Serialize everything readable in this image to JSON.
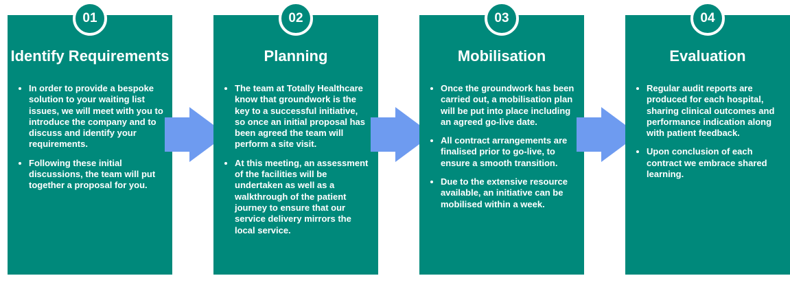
{
  "steps": [
    {
      "number": "01",
      "title": "Identify Requirements",
      "bullets": [
        "In order to provide a bespoke solution to your waiting list issues, we will meet with you to introduce the company and to discuss and identify your requirements.",
        "Following these initial discussions, the team will put together a proposal for you."
      ]
    },
    {
      "number": "02",
      "title": "Planning",
      "bullets": [
        "The team at Totally Healthcare know that groundwork is the key to a successful initiative, so once an initial proposal has been agreed the team will perform a site visit.",
        "At this meeting, an assessment of the facilities will be undertaken as well as a walkthrough of the patient journey to ensure that our service delivery mirrors the local service."
      ]
    },
    {
      "number": "03",
      "title": "Mobilisation",
      "bullets": [
        "Once the groundwork has been carried out, a mobilisation plan will be put into place including an agreed go-live date.",
        "All contract arrangements are finalised prior to go-live, to ensure a smooth transition.",
        "Due to the extensive resource available, an initiative can be mobilised within a week."
      ]
    },
    {
      "number": "04",
      "title": "Evaluation",
      "bullets": [
        "Regular audit reports are produced for each hospital, sharing clinical outcomes and performance indication along with patient feedback.",
        "Upon conclusion of each contract we embrace shared learning."
      ]
    }
  ],
  "colors": {
    "card": "#00897B",
    "arrow": "#6E9BF0",
    "text": "#ffffff"
  }
}
